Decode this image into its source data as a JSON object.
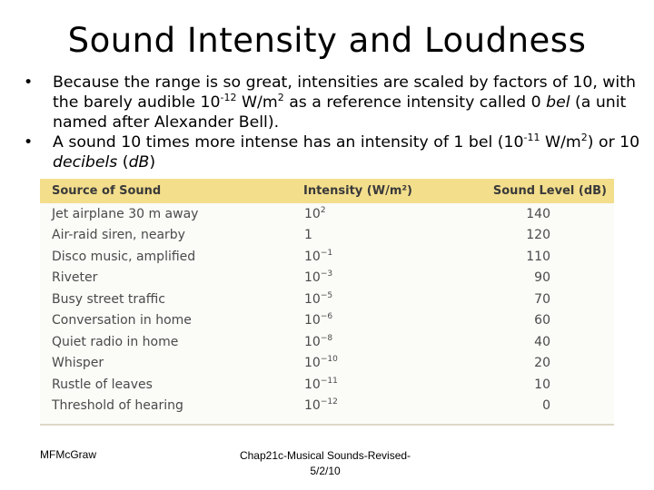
{
  "slide": {
    "title": "Sound Intensity and Loudness",
    "bullet_glyph": "•",
    "bullet1": {
      "part1": "Because the range is so great, intensities are scaled by factors of 10, with the barely audible 10",
      "sup1": "-12",
      "part2": " W/m",
      "sup2": "2",
      "part3": " as a reference intensity called 0 ",
      "em1": "bel",
      "part4": " (a unit named after Alexander Bell)."
    },
    "bullet2": {
      "part1": "A sound 10 times more intense has an intensity of 1 bel (10",
      "sup1": "-11",
      "part2": " W/m",
      "sup2": "2",
      "part3": ") or 10 ",
      "em1": "decibels",
      "part4": " (",
      "em2": "dB",
      "part5": ")"
    }
  },
  "table": {
    "headers": [
      "Source of Sound",
      "Intensity (W/m²)",
      "Sound Level (dB)"
    ],
    "rows": [
      {
        "source": "Jet airplane 30 m away",
        "base": "10",
        "exp": "2",
        "db": "140"
      },
      {
        "source": "Air-raid siren, nearby",
        "base": "1",
        "exp": "",
        "db": "120"
      },
      {
        "source": "Disco music, amplified",
        "base": "10",
        "exp": "−1",
        "db": "110"
      },
      {
        "source": "Riveter",
        "base": "10",
        "exp": "−3",
        "db": "90"
      },
      {
        "source": "Busy street traffic",
        "base": "10",
        "exp": "−5",
        "db": "70"
      },
      {
        "source": "Conversation in home",
        "base": "10",
        "exp": "−6",
        "db": "60"
      },
      {
        "source": "Quiet radio in home",
        "base": "10",
        "exp": "−8",
        "db": "40"
      },
      {
        "source": "Whisper",
        "base": "10",
        "exp": "−10",
        "db": "20"
      },
      {
        "source": "Rustle of leaves",
        "base": "10",
        "exp": "−11",
        "db": "10"
      },
      {
        "source": "Threshold of hearing",
        "base": "10",
        "exp": "−12",
        "db": "0"
      }
    ]
  },
  "footer": {
    "author": "MFMcGraw",
    "file_line1": "Chap21c-Musical Sounds-Revised-",
    "file_line2": "5/2/10"
  }
}
